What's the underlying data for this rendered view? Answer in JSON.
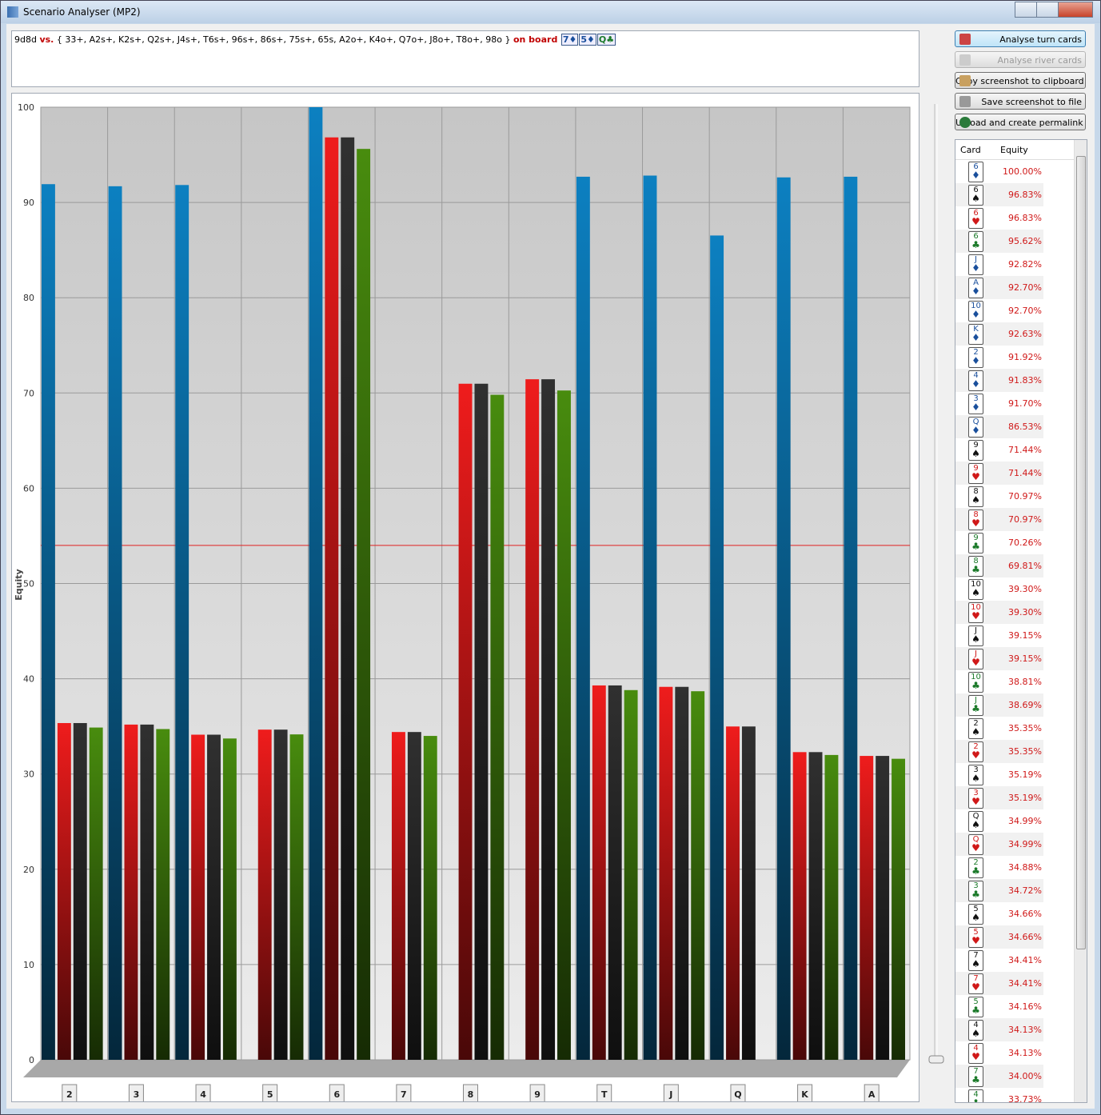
{
  "window": {
    "title": "Scenario Analyser (MP2)"
  },
  "scenario": {
    "hero": "9d8d",
    "versus": "vs.",
    "range": "{ 33+, A2s+, K2s+, Q2s+, J4s+, T6s+, 96s+, 86s+, 75s+, 65s, A2o+, K4o+, Q7o+, J8o+, T8o+, 98o }",
    "board_label": "on board",
    "board": [
      {
        "rank": "7",
        "suit": "♦",
        "color": "#1a4f9c"
      },
      {
        "rank": "5",
        "suit": "♦",
        "color": "#1a4f9c"
      },
      {
        "rank": "Q",
        "suit": "♣",
        "color": "#1c7a2a"
      }
    ]
  },
  "buttons": [
    "Analyse turn cards",
    "Analyse river cards",
    "Copy screenshot to clipboard",
    "Save screenshot to file",
    "Upload and create permalink"
  ],
  "chart_data": {
    "type": "bar",
    "y_label": "Equity",
    "categories": [
      "2",
      "3",
      "4",
      "5",
      "6",
      "7",
      "8",
      "9",
      "T",
      "J",
      "Q",
      "K",
      "A"
    ],
    "series": [
      {
        "color": "#0a6fa8",
        "values": [
          91.92,
          91.7,
          91.83,
          null,
          100,
          null,
          null,
          null,
          92.7,
          92.82,
          86.53,
          92.63,
          92.7
        ]
      },
      {
        "color": "#d01818",
        "values": [
          35.35,
          35.19,
          34.13,
          34.66,
          96.83,
          34.41,
          70.97,
          71.44,
          39.3,
          39.15,
          34.99,
          32.3,
          31.9
        ]
      },
      {
        "color": "#2a2a2a",
        "values": [
          35.35,
          35.19,
          34.13,
          34.66,
          96.83,
          34.41,
          70.97,
          71.44,
          39.3,
          39.15,
          34.99,
          32.3,
          31.9
        ]
      },
      {
        "color": "#3f7a0c",
        "values": [
          34.88,
          34.72,
          33.73,
          34.16,
          95.62,
          34.0,
          69.81,
          70.26,
          38.81,
          38.69,
          null,
          32.0,
          31.6
        ]
      }
    ],
    "reference_line": {
      "value": 54,
      "color": "#e02020"
    },
    "ylim": [
      0,
      100
    ],
    "yticks": [
      0,
      10,
      20,
      30,
      40,
      50,
      60,
      70,
      80,
      90,
      100
    ],
    "grid": true
  },
  "table": {
    "headers": [
      "Card",
      "Equity"
    ],
    "rows": [
      {
        "rank": "6",
        "suit": "♦",
        "color": "#1a4f9c",
        "equity": "100.00%"
      },
      {
        "rank": "6",
        "suit": "♠",
        "color": "#111111",
        "equity": "96.83%"
      },
      {
        "rank": "6",
        "suit": "♥",
        "color": "#d01818",
        "equity": "96.83%"
      },
      {
        "rank": "6",
        "suit": "♣",
        "color": "#1c7a2a",
        "equity": "95.62%"
      },
      {
        "rank": "J",
        "suit": "♦",
        "color": "#1a4f9c",
        "equity": "92.82%"
      },
      {
        "rank": "A",
        "suit": "♦",
        "color": "#1a4f9c",
        "equity": "92.70%"
      },
      {
        "rank": "10",
        "suit": "♦",
        "color": "#1a4f9c",
        "equity": "92.70%"
      },
      {
        "rank": "K",
        "suit": "♦",
        "color": "#1a4f9c",
        "equity": "92.63%"
      },
      {
        "rank": "2",
        "suit": "♦",
        "color": "#1a4f9c",
        "equity": "91.92%"
      },
      {
        "rank": "4",
        "suit": "♦",
        "color": "#1a4f9c",
        "equity": "91.83%"
      },
      {
        "rank": "3",
        "suit": "♦",
        "color": "#1a4f9c",
        "equity": "91.70%"
      },
      {
        "rank": "Q",
        "suit": "♦",
        "color": "#1a4f9c",
        "equity": "86.53%"
      },
      {
        "rank": "9",
        "suit": "♠",
        "color": "#111111",
        "equity": "71.44%"
      },
      {
        "rank": "9",
        "suit": "♥",
        "color": "#d01818",
        "equity": "71.44%"
      },
      {
        "rank": "8",
        "suit": "♠",
        "color": "#111111",
        "equity": "70.97%"
      },
      {
        "rank": "8",
        "suit": "♥",
        "color": "#d01818",
        "equity": "70.97%"
      },
      {
        "rank": "9",
        "suit": "♣",
        "color": "#1c7a2a",
        "equity": "70.26%"
      },
      {
        "rank": "8",
        "suit": "♣",
        "color": "#1c7a2a",
        "equity": "69.81%"
      },
      {
        "rank": "10",
        "suit": "♠",
        "color": "#111111",
        "equity": "39.30%"
      },
      {
        "rank": "10",
        "suit": "♥",
        "color": "#d01818",
        "equity": "39.30%"
      },
      {
        "rank": "J",
        "suit": "♠",
        "color": "#111111",
        "equity": "39.15%"
      },
      {
        "rank": "J",
        "suit": "♥",
        "color": "#d01818",
        "equity": "39.15%"
      },
      {
        "rank": "10",
        "suit": "♣",
        "color": "#1c7a2a",
        "equity": "38.81%"
      },
      {
        "rank": "J",
        "suit": "♣",
        "color": "#1c7a2a",
        "equity": "38.69%"
      },
      {
        "rank": "2",
        "suit": "♠",
        "color": "#111111",
        "equity": "35.35%"
      },
      {
        "rank": "2",
        "suit": "♥",
        "color": "#d01818",
        "equity": "35.35%"
      },
      {
        "rank": "3",
        "suit": "♠",
        "color": "#111111",
        "equity": "35.19%"
      },
      {
        "rank": "3",
        "suit": "♥",
        "color": "#d01818",
        "equity": "35.19%"
      },
      {
        "rank": "Q",
        "suit": "♠",
        "color": "#111111",
        "equity": "34.99%"
      },
      {
        "rank": "Q",
        "suit": "♥",
        "color": "#d01818",
        "equity": "34.99%"
      },
      {
        "rank": "2",
        "suit": "♣",
        "color": "#1c7a2a",
        "equity": "34.88%"
      },
      {
        "rank": "3",
        "suit": "♣",
        "color": "#1c7a2a",
        "equity": "34.72%"
      },
      {
        "rank": "5",
        "suit": "♠",
        "color": "#111111",
        "equity": "34.66%"
      },
      {
        "rank": "5",
        "suit": "♥",
        "color": "#d01818",
        "equity": "34.66%"
      },
      {
        "rank": "7",
        "suit": "♠",
        "color": "#111111",
        "equity": "34.41%"
      },
      {
        "rank": "7",
        "suit": "♥",
        "color": "#d01818",
        "equity": "34.41%"
      },
      {
        "rank": "5",
        "suit": "♣",
        "color": "#1c7a2a",
        "equity": "34.16%"
      },
      {
        "rank": "4",
        "suit": "♠",
        "color": "#111111",
        "equity": "34.13%"
      },
      {
        "rank": "4",
        "suit": "♥",
        "color": "#d01818",
        "equity": "34.13%"
      },
      {
        "rank": "7",
        "suit": "♣",
        "color": "#1c7a2a",
        "equity": "34.00%"
      },
      {
        "rank": "4",
        "suit": "♣",
        "color": "#1c7a2a",
        "equity": "33.73%"
      }
    ]
  }
}
